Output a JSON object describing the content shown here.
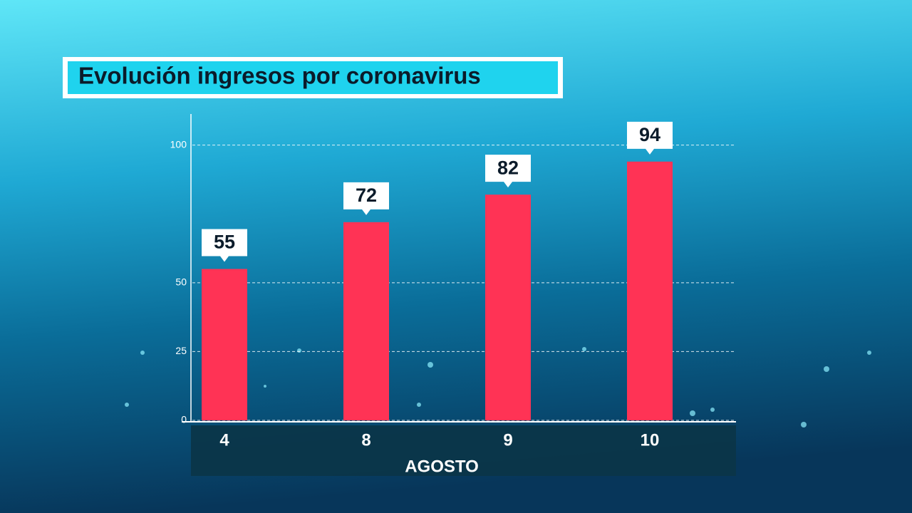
{
  "chart_data": {
    "type": "bar",
    "title": "Evolución ingresos por coronavirus",
    "xlabel": "AGOSTO",
    "categories": [
      "4",
      "8",
      "9",
      "10"
    ],
    "values": [
      55,
      72,
      82,
      94
    ],
    "color": "#ff3355",
    "ylim": [
      0,
      110
    ],
    "yticks": [
      0,
      25,
      50,
      100
    ],
    "grid": true
  }
}
